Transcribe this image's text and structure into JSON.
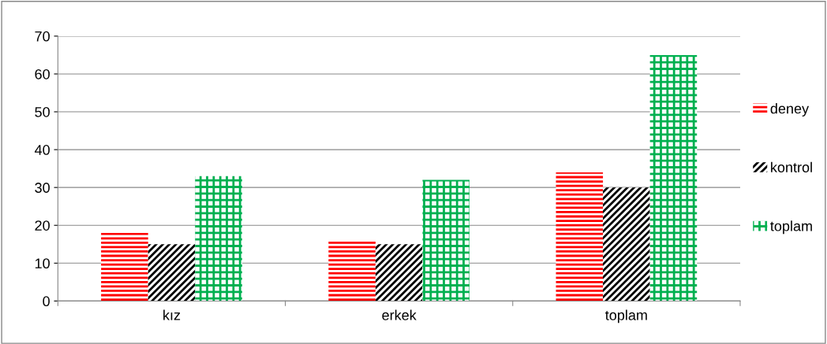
{
  "chart_data": {
    "type": "bar",
    "categories": [
      "kız",
      "erkek",
      "toplam"
    ],
    "series": [
      {
        "name": "deney",
        "color": "#ff0000",
        "values": [
          18,
          16,
          34
        ]
      },
      {
        "name": "kontrol",
        "color": "#000000",
        "values": [
          15,
          15,
          30
        ]
      },
      {
        "name": "toplam",
        "color": "#00b050",
        "values": [
          33,
          32,
          65
        ]
      }
    ],
    "ylim": [
      0,
      70
    ],
    "yticks": [
      0,
      10,
      20,
      30,
      40,
      50,
      60,
      70
    ],
    "grid": "y",
    "legend": "right"
  }
}
